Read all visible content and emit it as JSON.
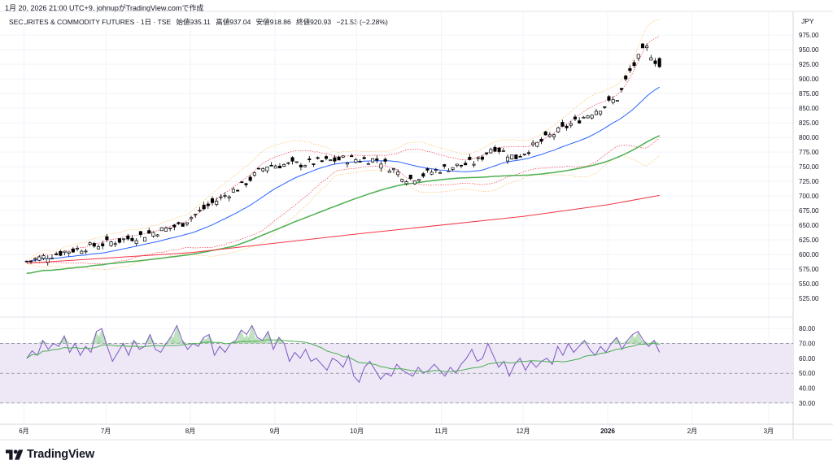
{
  "header": {
    "timestamp": "1月 20, 2026 21:00 UTC+9",
    "author_text": "johnupがTradingView.comで作成"
  },
  "legend": {
    "symbol": "SECURITES & COMMODITY FUTURES · 1日 · TSE",
    "open_label": "始値",
    "open": "935.11",
    "high_label": "高値",
    "high": "937.04",
    "low_label": "安値",
    "low": "918.86",
    "close_label": "終値",
    "close": "920.93",
    "change": "−21.53 (−2.28%)"
  },
  "currency": "JPY",
  "brand": "TradingView",
  "colors": {
    "ma_short": "#2962ff",
    "ma_mid": "#4caf50",
    "ma_long": "#f23645",
    "bollinger": "#f23645",
    "bollinger_outer": "#ff9800",
    "rsi": "#7e57c2",
    "rsi_ma": "#4caf50",
    "rsi_band": "#ede7f6"
  },
  "chart_data": [
    {
      "type": "candlestick",
      "title": "SECURITES & COMMODITY FUTURES · 1日 · TSE",
      "y_unit": "JPY",
      "ylim": [
        500,
        985
      ],
      "yticks": [
        "975.00",
        "950.00",
        "925.00",
        "900.00",
        "875.00",
        "850.00",
        "825.00",
        "800.00",
        "775.00",
        "750.00",
        "725.00",
        "700.00",
        "675.00",
        "650.00",
        "625.00",
        "600.00",
        "575.00",
        "550.00",
        "525.00"
      ],
      "x_ticks": [
        "6月",
        "7月",
        "8月",
        "9月",
        "10月",
        "11月",
        "12月",
        "2026",
        "2月",
        "3月"
      ],
      "grid": true,
      "close_series_approx": [
        {
          "x": "2025-06-02",
          "close": 588
        },
        {
          "x": "2025-06-16",
          "close": 605
        },
        {
          "x": "2025-06-30",
          "close": 618
        },
        {
          "x": "2025-07-14",
          "close": 632
        },
        {
          "x": "2025-07-28",
          "close": 650
        },
        {
          "x": "2025-08-08",
          "close": 685
        },
        {
          "x": "2025-08-20",
          "close": 718
        },
        {
          "x": "2025-08-29",
          "close": 752
        },
        {
          "x": "2025-09-12",
          "close": 755
        },
        {
          "x": "2025-09-26",
          "close": 763
        },
        {
          "x": "2025-10-09",
          "close": 762
        },
        {
          "x": "2025-10-20",
          "close": 728
        },
        {
          "x": "2025-10-31",
          "close": 745
        },
        {
          "x": "2025-11-14",
          "close": 758
        },
        {
          "x": "2025-11-20",
          "close": 785
        },
        {
          "x": "2025-11-28",
          "close": 765
        },
        {
          "x": "2025-12-10",
          "close": 800
        },
        {
          "x": "2025-12-22",
          "close": 832
        },
        {
          "x": "2026-01-05",
          "close": 868
        },
        {
          "x": "2026-01-09",
          "close": 912
        },
        {
          "x": "2026-01-15",
          "close": 955
        },
        {
          "x": "2026-01-20",
          "close": 920.93
        }
      ],
      "last_candle": {
        "open": 935.11,
        "high": 937.04,
        "low": 918.86,
        "close": 920.93,
        "change": -21.53,
        "change_pct": -2.28
      },
      "overlays": [
        "short moving average (blue)",
        "medium moving average (green)",
        "long moving average (red)",
        "bollinger bands (dotted)"
      ]
    },
    {
      "type": "line",
      "title": "",
      "yticks": [
        "80.00",
        "70.00",
        "60.00",
        "50.00",
        "40.00",
        "30.00"
      ],
      "ylim": [
        25,
        85
      ],
      "band": [
        30,
        70
      ],
      "midline": 50,
      "series": [
        {
          "values": [
            60,
            65,
            62,
            72,
            66,
            70,
            68,
            75,
            64,
            70,
            62,
            68,
            64,
            78,
            80,
            68,
            58,
            64,
            70,
            62,
            72,
            66,
            68,
            76,
            66,
            64,
            70,
            75,
            82,
            72,
            66,
            70,
            68,
            74,
            76,
            62,
            68,
            64,
            70,
            72,
            79,
            76,
            82,
            74,
            72,
            78,
            66,
            74,
            70,
            58,
            64,
            60,
            66,
            58,
            60,
            56,
            52,
            60,
            58,
            54,
            62,
            48,
            44,
            54,
            58,
            52,
            46,
            50,
            48,
            56,
            52,
            50,
            48,
            54,
            50,
            52,
            56,
            52,
            48,
            54,
            50,
            56,
            60,
            66,
            58,
            60,
            70,
            62,
            54,
            58,
            48,
            56,
            60,
            52,
            58,
            54,
            58,
            60,
            56,
            68,
            62,
            70,
            64,
            68,
            72,
            66,
            62,
            68,
            64,
            70,
            74,
            66,
            72,
            76,
            78,
            72,
            68,
            72,
            64
          ]
        }
      ]
    }
  ]
}
